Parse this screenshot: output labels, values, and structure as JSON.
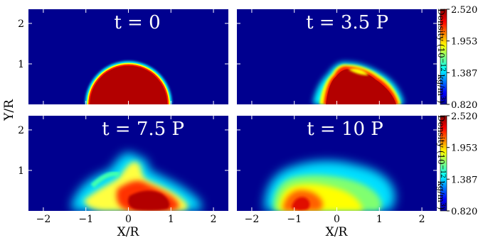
{
  "chart_data": {
    "type": "heatmap",
    "xlabel": "X/R",
    "ylabel": "Y/R",
    "xlim": [
      -2.35,
      2.35
    ],
    "ylim": [
      0,
      2.35
    ],
    "x_ticks": [
      "−2",
      "−1",
      "0",
      "1",
      "2"
    ],
    "x_tick_values": [
      -2,
      -1,
      0,
      1,
      2
    ],
    "y_ticks": [
      "1",
      "2"
    ],
    "y_tick_values": [
      1,
      2
    ],
    "colorbar": {
      "label": "Density (10",
      "label_exponent": "−12",
      "label_unit": " kg/m",
      "label_unit_exponent": "3",
      "label_close": ")",
      "min": 0.82,
      "max": 2.52,
      "ticks": [
        "2.520",
        "1.953",
        "1.387",
        "0.820"
      ],
      "tick_values": [
        2.52,
        1.953,
        1.387,
        0.82
      ],
      "colormap": "jet"
    },
    "panels": [
      {
        "time_label": "t = 0",
        "time_periods": 0
      },
      {
        "time_label": "t = 3.5 P",
        "time_periods": 3.5
      },
      {
        "time_label": "t = 7.5 P",
        "time_periods": 7.5
      },
      {
        "time_label": "t = 10 P",
        "time_periods": 10
      }
    ]
  }
}
